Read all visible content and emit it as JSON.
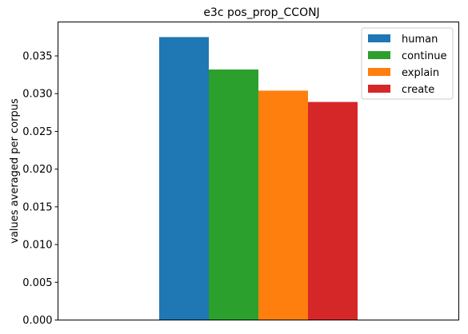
{
  "chart_data": {
    "type": "bar",
    "title": "e3c pos_prop_CCONJ",
    "xlabel": "",
    "ylabel": "values averaged per corpus",
    "ylim": [
      0,
      0.0395
    ],
    "yticks": [
      "0.000",
      "0.005",
      "0.010",
      "0.015",
      "0.020",
      "0.025",
      "0.030",
      "0.035"
    ],
    "grid": false,
    "legend_position": "top-right",
    "series": [
      {
        "name": "human",
        "value": 0.0375,
        "color": "#1f77b4"
      },
      {
        "name": "continue",
        "value": 0.0332,
        "color": "#2ca02c"
      },
      {
        "name": "explain",
        "value": 0.0304,
        "color": "#ff7f0e"
      },
      {
        "name": "create",
        "value": 0.0289,
        "color": "#d62728"
      }
    ]
  }
}
